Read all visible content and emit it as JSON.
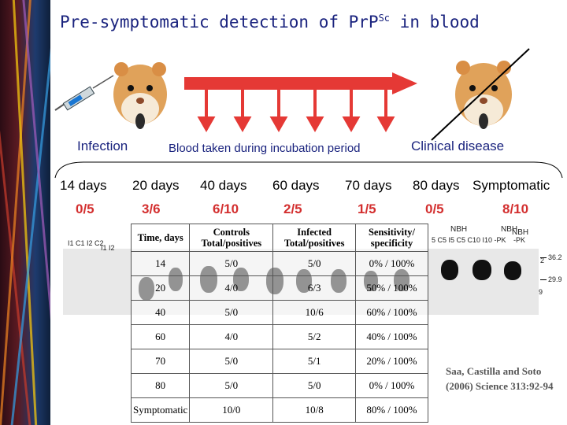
{
  "title": {
    "main": "Pre-symptomatic detection of PrP",
    "sup": "Sc",
    "tail": " in blood"
  },
  "labels": {
    "infection": "Infection",
    "blood": "Blood taken during incubation period",
    "clinical": "Clinical disease"
  },
  "timepoints": [
    {
      "label": "14 days",
      "ratio": "0/5"
    },
    {
      "label": "20 days",
      "ratio": "3/6"
    },
    {
      "label": "40 days",
      "ratio": "6/10"
    },
    {
      "label": "60 days",
      "ratio": "2/5"
    },
    {
      "label": "70 days",
      "ratio": "1/5"
    },
    {
      "label": "80 days",
      "ratio": "0/5"
    },
    {
      "label": "Symptomatic",
      "ratio": "8/10"
    }
  ],
  "gel": {
    "lanes_left": "I1  C1  I2  C2",
    "lanes_left_sub": "I1  I2",
    "lanes_right": "5 C5 I5 C5 C10 I10  -PK",
    "nbh_1": "NBH",
    "nbh_2": "NBH",
    "nbh_3": "NBH",
    "nbh_pk": "-PK",
    "markers": [
      "36.2",
      "29.9"
    ],
    "marker_small": [
      "2",
      "9"
    ]
  },
  "table": {
    "headers": [
      "Time, days",
      "Controls Total/positives",
      "Infected Total/positives",
      "Sensitivity/ specificity"
    ],
    "rows": [
      [
        "14",
        "5/0",
        "5/0",
        "0% / 100%"
      ],
      [
        "20",
        "4/0",
        "6/3",
        "50% / 100%"
      ],
      [
        "40",
        "5/0",
        "10/6",
        "60% / 100%"
      ],
      [
        "60",
        "4/0",
        "5/2",
        "40% / 100%"
      ],
      [
        "70",
        "5/0",
        "5/1",
        "20% / 100%"
      ],
      [
        "80",
        "5/0",
        "5/0",
        "0% / 100%"
      ],
      [
        "Symptomatic",
        "10/0",
        "10/8",
        "80% / 100%"
      ]
    ]
  },
  "citation": {
    "line1": "Saa, Castilla and Soto",
    "line2": "(2006) Science 313:92-94"
  },
  "colors": {
    "title": "#1a237e",
    "ratio": "#d32f2f",
    "arrow": "#e53935",
    "cross_line": "#000000"
  }
}
